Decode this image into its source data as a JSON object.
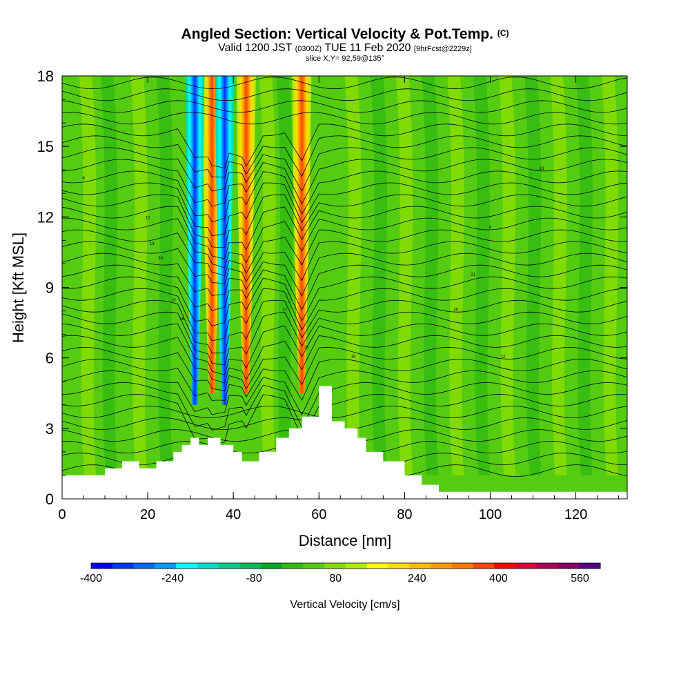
{
  "chart_data": {
    "type": "heatmap",
    "title": "Angled Section: Vertical Velocity & Pot.Temp.",
    "title_suffix": "(C)",
    "subtitle_prefix": "Valid 1200 JST",
    "subtitle_utc": "(0300Z)",
    "subtitle_date": "TUE 11 Feb 2020",
    "subtitle_fcst": "[9hrFcst@2229z]",
    "slice_label": "slice X,Y= 92,59@135°",
    "xlabel": "Distance [nm]",
    "ylabel": "Height [Kft MSL]",
    "xlim": [
      0,
      132
    ],
    "ylim": [
      0,
      18
    ],
    "x_ticks": [
      0,
      20,
      40,
      60,
      80,
      100,
      120
    ],
    "y_ticks": [
      0,
      3,
      6,
      9,
      12,
      15,
      18
    ],
    "colorbar": {
      "label": "Vertical Velocity [cm/s]",
      "min": -400,
      "max": 600,
      "ticks": [
        -400,
        -240,
        -80,
        80,
        240,
        400,
        560
      ],
      "colors": [
        "#0000ff",
        "#0033ff",
        "#0066ff",
        "#0099ff",
        "#00ffff",
        "#00ddcc",
        "#00cc88",
        "#00bb55",
        "#00aa22",
        "#33bb11",
        "#55cc11",
        "#88dd00",
        "#aaee00",
        "#ffff00",
        "#ffdd00",
        "#ffbb00",
        "#ff9900",
        "#ff7700",
        "#ff4400",
        "#ff0000",
        "#dd0033",
        "#aa0055",
        "#880066",
        "#550088"
      ]
    },
    "terrain": [
      [
        0,
        1
      ],
      [
        10,
        1
      ],
      [
        10,
        1.3
      ],
      [
        14,
        1.3
      ],
      [
        14,
        1.6
      ],
      [
        18,
        1.6
      ],
      [
        18,
        1.3
      ],
      [
        22,
        1.3
      ],
      [
        22,
        1.6
      ],
      [
        26,
        1.6
      ],
      [
        26,
        2
      ],
      [
        28,
        2
      ],
      [
        28,
        2.3
      ],
      [
        30,
        2.3
      ],
      [
        30,
        2.6
      ],
      [
        32,
        2.6
      ],
      [
        32,
        2.3
      ],
      [
        34,
        2.3
      ],
      [
        34,
        2.6
      ],
      [
        37,
        2.6
      ],
      [
        37,
        2.3
      ],
      [
        40,
        2.3
      ],
      [
        40,
        2
      ],
      [
        42,
        2
      ],
      [
        42,
        1.6
      ],
      [
        46,
        1.6
      ],
      [
        46,
        2
      ],
      [
        50,
        2
      ],
      [
        50,
        2.6
      ],
      [
        53,
        2.6
      ],
      [
        53,
        3
      ],
      [
        56,
        3
      ],
      [
        56,
        3.5
      ],
      [
        60,
        3.5
      ],
      [
        60,
        4.8
      ],
      [
        63,
        4.8
      ],
      [
        63,
        3.3
      ],
      [
        66,
        3.3
      ],
      [
        66,
        3
      ],
      [
        69,
        3
      ],
      [
        69,
        2.6
      ],
      [
        71,
        2.6
      ],
      [
        71,
        2
      ],
      [
        75,
        2
      ],
      [
        75,
        1.6
      ],
      [
        80,
        1.6
      ],
      [
        80,
        1
      ],
      [
        84,
        1
      ],
      [
        84,
        0.6
      ],
      [
        88,
        0.6
      ],
      [
        88,
        0.3
      ],
      [
        132,
        0.3
      ]
    ],
    "updraft_cores_nm": [
      35,
      43,
      56
    ],
    "downdraft_cores_nm": [
      31,
      38
    ],
    "theta_labels": [
      "6",
      "12",
      "13",
      "14",
      "15",
      "16",
      "17",
      "18",
      "19",
      "20",
      "21"
    ]
  }
}
